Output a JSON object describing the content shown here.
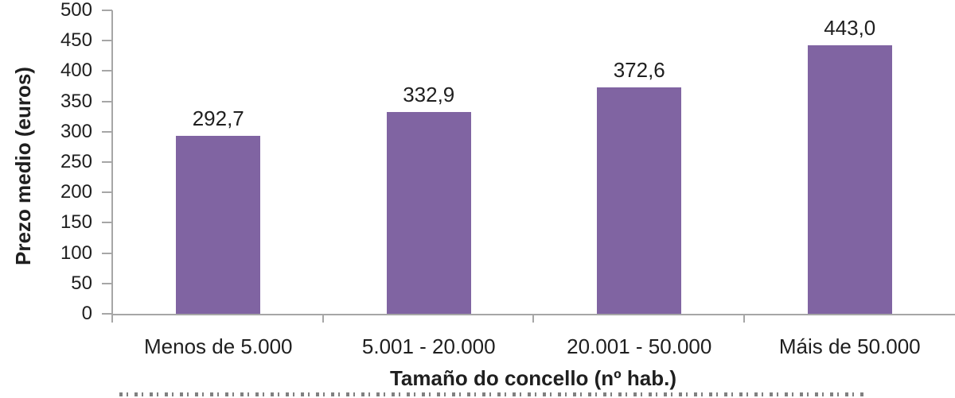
{
  "chart_data": {
    "type": "bar",
    "title": "",
    "xlabel": "Tamaño do concello (nº hab.)",
    "ylabel": "Prezo medio (euros)",
    "categories": [
      "Menos de 5.000",
      "5.001 - 20.000",
      "20.001 - 50.000",
      "Máis de 50.000"
    ],
    "values": [
      292.7,
      332.9,
      372.6,
      443.0
    ],
    "value_labels": [
      "292,7",
      "332,9",
      "372,6",
      "443,0"
    ],
    "ylim": [
      0,
      500
    ],
    "ytick_step": 50,
    "yticks": [
      0,
      50,
      100,
      150,
      200,
      250,
      300,
      350,
      400,
      450,
      500
    ],
    "grid": false,
    "legend": null,
    "colors": {
      "bar": "#8064A2",
      "axis": "#A6A6A6",
      "text": "#1F1F1F"
    }
  }
}
